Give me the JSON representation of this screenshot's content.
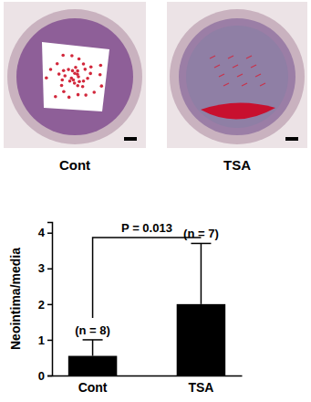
{
  "chart_data": {
    "type": "bar",
    "panel_labels": [
      "Cont",
      "TSA"
    ],
    "y_label": "Neointima/media",
    "categories": [
      "Cont",
      "TSA"
    ],
    "values": [
      0.55,
      2.0
    ],
    "errors": [
      0.45,
      1.7
    ],
    "n_labels": [
      "(n = 8)",
      "(n = 7)"
    ],
    "p_label": "P = 0.013",
    "color": "#000000",
    "ylim": [
      0,
      4.3
    ],
    "yticks": [
      0,
      1,
      2,
      3,
      4
    ],
    "grid": false
  }
}
